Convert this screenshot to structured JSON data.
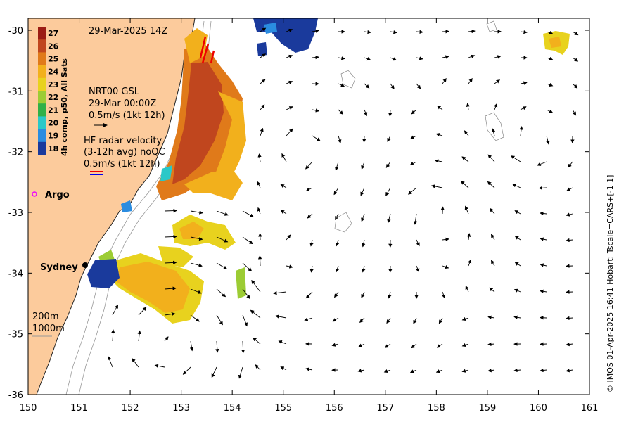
{
  "map": {
    "title": "29-Mar-2025 14Z",
    "lon_ticks": [
      "150",
      "151",
      "152",
      "153",
      "154",
      "155",
      "156",
      "157",
      "158",
      "159",
      "160",
      "161"
    ],
    "lat_ticks": [
      "-30",
      "-31",
      "-32",
      "-33",
      "-34",
      "-35",
      "-36"
    ],
    "colors": {
      "land": "#fccb9c",
      "shelf": "#ffffff",
      "coast": "#222222"
    }
  },
  "colorbar": {
    "title": "4h comp, p50, All Sats",
    "ticks": [
      "27",
      "26",
      "25",
      "24",
      "23",
      "22",
      "21",
      "20",
      "19",
      "18"
    ],
    "colors": [
      "#9b1c14",
      "#c0461e",
      "#e07a1a",
      "#f2b01c",
      "#e8d21e",
      "#9ccc34",
      "#30b048",
      "#2ac8c8",
      "#2a8ce0",
      "#1a3a9c"
    ]
  },
  "annotations": {
    "nrt_label": "NRT00 GSL",
    "nrt_time": "29-Mar 00:00Z",
    "nrt_scale": "0.5m/s (1kt 12h)",
    "hf_line1": "HF radar velocity",
    "hf_line2": "(3-12h avg) noQC",
    "hf_scale": "0.5m/s (1kt 12h)",
    "argo": "Argo",
    "sydney": "Sydney",
    "contour_200": "200m",
    "contour_1000": "1000m"
  },
  "credit": "© IMOS 01-Apr-2025 16:41 Hobart; Tscale=CARS+[-1 1]"
}
